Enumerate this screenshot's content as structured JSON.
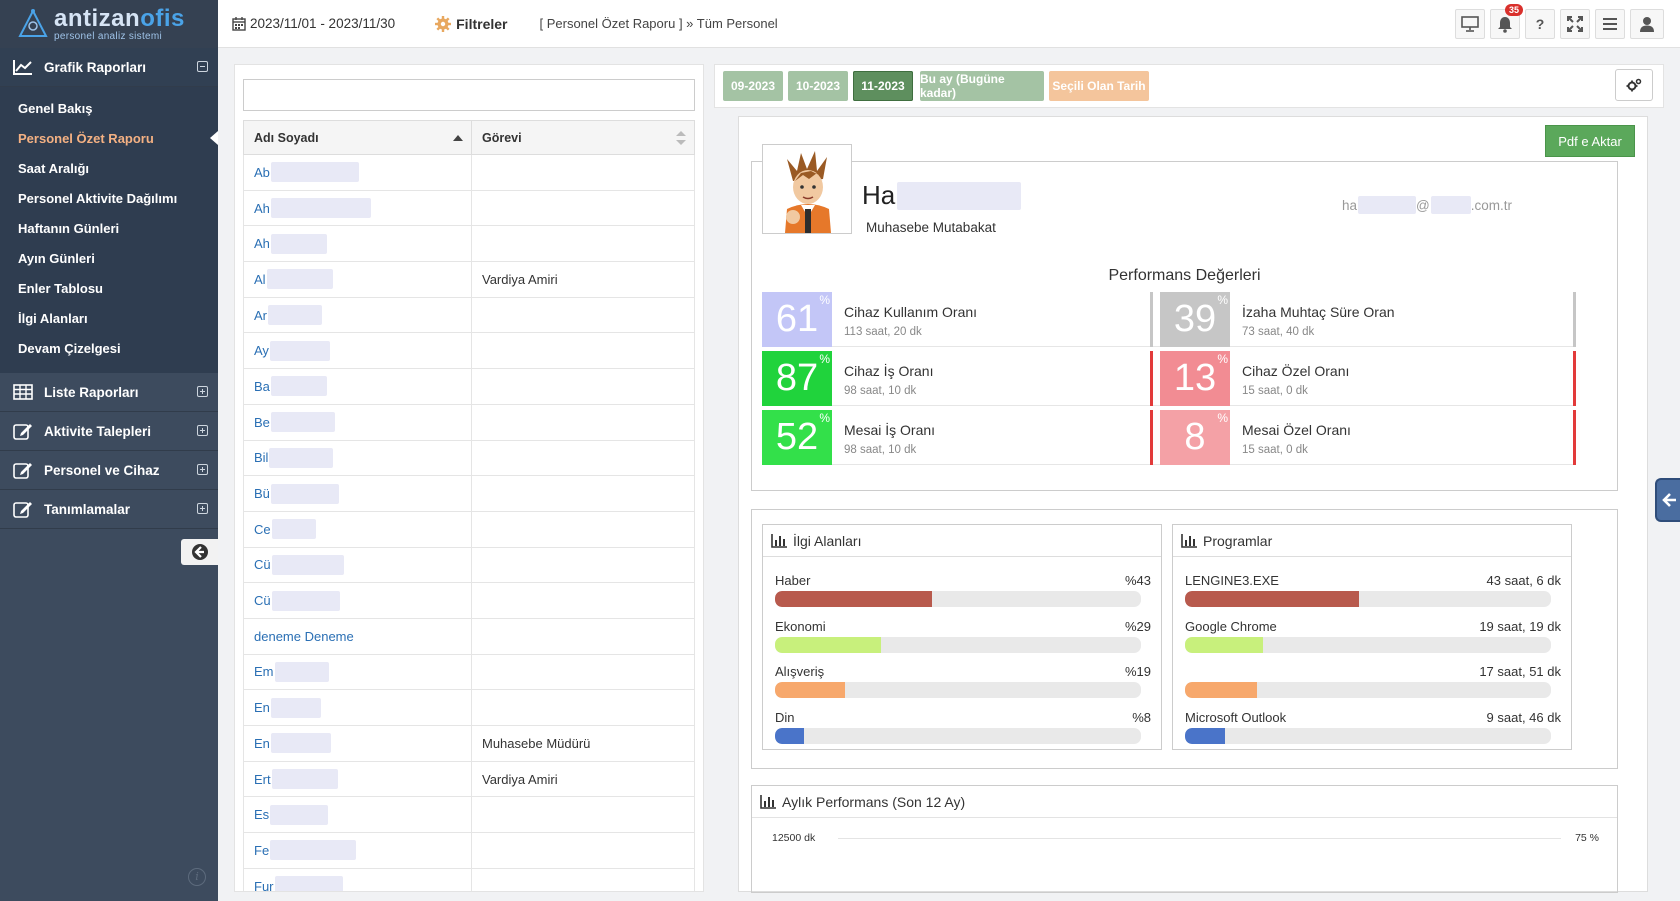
{
  "app": {
    "brand_prefix": "antizan",
    "brand_suffix": "ofis",
    "subtitle": "personel analiz sistemi"
  },
  "sidebar": {
    "groups": [
      {
        "label": "Grafik Raporları",
        "icon": "line-chart-icon",
        "expanded": true
      },
      {
        "label": "Liste Raporları",
        "icon": "table-icon",
        "expanded": false
      },
      {
        "label": "Aktivite Talepleri",
        "icon": "edit-icon",
        "expanded": false
      },
      {
        "label": "Personel ve Cihaz",
        "icon": "edit-icon",
        "expanded": false
      },
      {
        "label": "Tanımlamalar",
        "icon": "edit-icon",
        "expanded": false
      }
    ],
    "items": [
      {
        "label": "Genel Bakış"
      },
      {
        "label": "Personel Özet Raporu",
        "selected": true
      },
      {
        "label": "Saat Aralığı"
      },
      {
        "label": "Personel Aktivite Dağılımı"
      },
      {
        "label": "Haftanın Günleri"
      },
      {
        "label": "Ayın Günleri"
      },
      {
        "label": "Enler Tablosu"
      },
      {
        "label": "İlgi Alanları"
      },
      {
        "label": "Devam Çizelgesi"
      }
    ]
  },
  "topbar": {
    "date_range": "2023/11/01 - 2023/11/30",
    "filters_label": "Filtreler",
    "breadcrumb": "[ Personel Özet Raporu ] » Tüm Personel",
    "notification_count": "35",
    "help_label": "?"
  },
  "list": {
    "search_placeholder": "",
    "headers": {
      "name": "Adı Soyadı",
      "role": "Görevi"
    },
    "rows": [
      {
        "name": "Ab",
        "role": "",
        "blur": 88
      },
      {
        "name": "Ah",
        "role": "",
        "blur": 100
      },
      {
        "name": "Ah",
        "role": "",
        "blur": 56
      },
      {
        "name": "Al",
        "role": "Vardiya Amiri",
        "blur": 66
      },
      {
        "name": "Ar",
        "role": "",
        "blur": 54
      },
      {
        "name": "Ay",
        "role": "",
        "blur": 60
      },
      {
        "name": "Ba",
        "role": "",
        "blur": 56
      },
      {
        "name": "Be",
        "role": "",
        "blur": 64
      },
      {
        "name": "Bil",
        "role": "",
        "blur": 64
      },
      {
        "name": "Bü",
        "role": "",
        "blur": 68
      },
      {
        "name": "Ce",
        "role": "",
        "blur": 44
      },
      {
        "name": "Cü",
        "role": "",
        "blur": 72
      },
      {
        "name": "Cü",
        "role": "",
        "blur": 68
      },
      {
        "name": "deneme Deneme",
        "role": "",
        "blur": 0
      },
      {
        "name": "Em",
        "role": "",
        "blur": 54
      },
      {
        "name": "En",
        "role": "",
        "blur": 50
      },
      {
        "name": "En",
        "role": "Muhasebe Müdürü",
        "blur": 60
      },
      {
        "name": "Ert",
        "role": "Vardiya Amiri",
        "blur": 66
      },
      {
        "name": "Es",
        "role": "",
        "blur": 58
      },
      {
        "name": "Fe",
        "role": "",
        "blur": 86
      },
      {
        "name": "Fur",
        "role": "",
        "blur": 68
      }
    ]
  },
  "months": [
    {
      "label": "09-2023",
      "color": "#a4c3a4"
    },
    {
      "label": "10-2023",
      "color": "#a4c3a4"
    },
    {
      "label": "11-2023",
      "color": "#5e8f5e",
      "active": true
    },
    {
      "label": "Bu ay (Bugüne kadar)",
      "color": "#a4c3a4"
    },
    {
      "label": "Seçili Olan Tarih",
      "color": "#f4c59c"
    }
  ],
  "report": {
    "pdf_label": "Pdf e Aktar",
    "person": {
      "name_prefix": "Ha",
      "role": "Muhasebe Mutabakat",
      "email_prefix": "ha",
      "email_at": "@",
      "email_suffix": ".com.tr"
    },
    "perf_title": "Performans Değerleri",
    "stats": [
      {
        "value": "61",
        "label": "Cihaz Kullanım Oranı",
        "sub": "113 saat, 20 dk",
        "color": "#c3c6f7",
        "edge": "#c3c6f7"
      },
      {
        "value": "39",
        "label": "İzaha Muhtaç Süre Oran",
        "sub": "73 saat, 40 dk",
        "color": "#c6c6c6",
        "edge": "#c6c6c6"
      },
      {
        "value": "87",
        "label": "Cihaz İş Oranı",
        "sub": "98 saat, 10 dk",
        "color": "#20d33c",
        "edge": "#20c060"
      },
      {
        "value": "13",
        "label": "Cihaz Özel Oranı",
        "sub": "15 saat, 0 dk",
        "color": "#f28c93",
        "edge": "#e23a3a"
      },
      {
        "value": "52",
        "label": "Mesai İş Oranı",
        "sub": "98 saat, 10 dk",
        "color": "#33e04a",
        "edge": "#20c060"
      },
      {
        "value": "8",
        "label": "Mesai Özel Oranı",
        "sub": "15 saat, 0 dk",
        "color": "#f4a1a6",
        "edge": "#e23a3a"
      }
    ],
    "percent_sign": "%",
    "interests": {
      "title": "İlgi Alanları",
      "items": [
        {
          "label": "Haber",
          "value_text": "%43",
          "value": 43,
          "color": "#b85a4d"
        },
        {
          "label": "Ekonomi",
          "value_text": "%29",
          "value": 29,
          "color": "#c8f07c"
        },
        {
          "label": "Alışveriş",
          "value_text": "%19",
          "value": 19,
          "color": "#f7a86c"
        },
        {
          "label": "Din",
          "value_text": "%8",
          "value": 8,
          "color": "#4a74c9"
        }
      ]
    },
    "programs": {
      "title": "Programlar",
      "items": [
        {
          "label": "LENGINE3.EXE",
          "value_text": "43 saat, 6 dk",
          "value": 0.476,
          "color": "#b85a4d"
        },
        {
          "label": "Google Chrome",
          "value_text": "19 saat, 19 dk",
          "value": 0.213,
          "color": "#c8f07c"
        },
        {
          "label": "",
          "value_text": "17 saat, 51 dk",
          "value": 0.197,
          "color": "#f7a86c"
        },
        {
          "label": "Microsoft Outlook",
          "value_text": "9 saat, 46 dk",
          "value": 0.108,
          "color": "#4a74c9"
        }
      ]
    },
    "monthly": {
      "title": "Aylık Performans (Son 12 Ay)",
      "y_left_top": "12500 dk",
      "y_right_top": "75 %"
    }
  }
}
